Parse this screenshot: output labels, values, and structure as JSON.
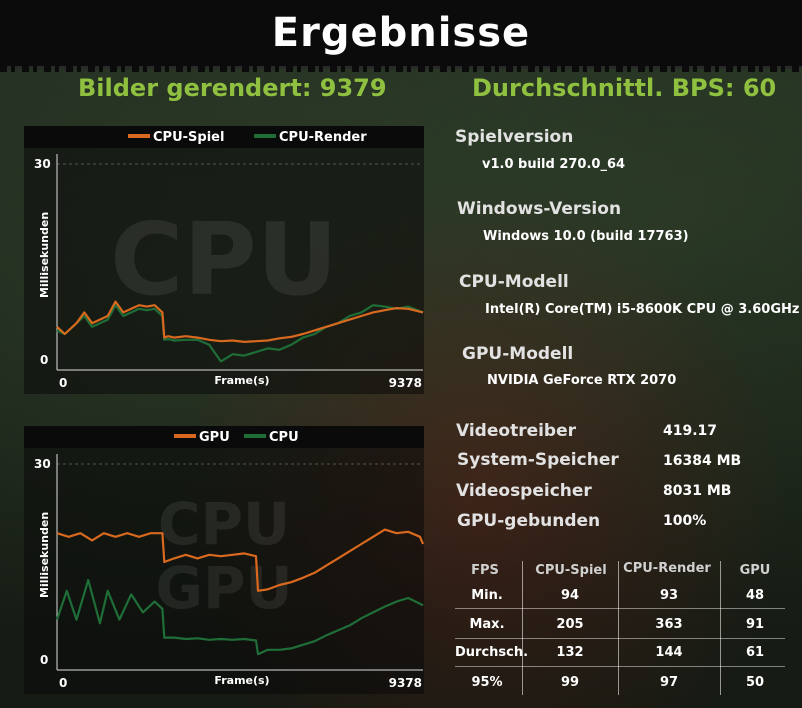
{
  "title": "Ergebnisse",
  "headline": {
    "frames_rendered": "Bilder gerendert: 9379",
    "average_fps": "Durchschnittl. BPS: 60"
  },
  "colors": {
    "accent_green": "#8fc03f",
    "series_orange": "#d8691f",
    "series_green": "#1f6e38"
  },
  "chart_data": [
    {
      "type": "line",
      "watermark": "CPU",
      "xlabel": "Frame(s)",
      "ylabel": "Millisekunden",
      "x_ticks": [
        "0",
        "9378"
      ],
      "y_ticks": [
        "30",
        "0"
      ],
      "xlim": [
        0,
        9378
      ],
      "ylim": [
        0,
        30
      ],
      "series": [
        {
          "name": "CPU-Spiel",
          "color": "#d8691f",
          "x": [
            0,
            200,
            500,
            700,
            900,
            1100,
            1300,
            1500,
            1700,
            1900,
            2100,
            2300,
            2500,
            2700,
            2750,
            2850,
            3000,
            3300,
            3600,
            3900,
            4200,
            4500,
            4800,
            5100,
            5400,
            5700,
            6000,
            6300,
            6600,
            6900,
            7200,
            7500,
            7800,
            8100,
            8400,
            8700,
            9000,
            9378
          ],
          "values": [
            6,
            5,
            6.5,
            8,
            6.5,
            7,
            7.5,
            9.5,
            8,
            8.5,
            9,
            8.8,
            9,
            8,
            4.5,
            4.7,
            4.5,
            4.7,
            4.5,
            4.2,
            4,
            4.1,
            3.9,
            4,
            4.1,
            4.4,
            4.6,
            5,
            5.5,
            6,
            6.5,
            7,
            7.5,
            8,
            8.3,
            8.6,
            8.5,
            8
          ]
        },
        {
          "name": "CPU-Render",
          "color": "#1f6e38",
          "x": [
            0,
            200,
            500,
            700,
            900,
            1100,
            1300,
            1500,
            1700,
            1900,
            2100,
            2300,
            2500,
            2700,
            2750,
            2850,
            3000,
            3300,
            3600,
            3900,
            4200,
            4500,
            4800,
            5100,
            5400,
            5700,
            6000,
            6300,
            6600,
            6900,
            7200,
            7500,
            7800,
            8100,
            8400,
            8700,
            9000,
            9378
          ],
          "values": [
            5.5,
            5,
            6.5,
            7.5,
            6,
            6.5,
            7,
            9,
            7.5,
            8,
            8.5,
            8.3,
            8.5,
            7.5,
            4.2,
            4.3,
            4.1,
            4.2,
            4.2,
            3.5,
            1.2,
            2.2,
            2,
            2.5,
            3,
            2.8,
            3.5,
            4.5,
            5,
            6,
            6.5,
            7.5,
            8,
            9,
            8.8,
            8.5,
            8.8,
            8
          ]
        }
      ]
    },
    {
      "type": "line",
      "watermark": "CPU GPU",
      "xlabel": "Frame(s)",
      "ylabel": "Millisekunden",
      "x_ticks": [
        "0",
        "9378"
      ],
      "y_ticks": [
        "30",
        "0"
      ],
      "xlim": [
        0,
        9378
      ],
      "ylim": [
        0,
        30
      ],
      "series": [
        {
          "name": "GPU",
          "color": "#d8691f",
          "x": [
            0,
            300,
            600,
            900,
            1200,
            1500,
            1800,
            2100,
            2400,
            2700,
            2750,
            3000,
            3300,
            3600,
            3900,
            4200,
            4500,
            4800,
            5100,
            5150,
            5400,
            5700,
            6000,
            6300,
            6600,
            6900,
            7200,
            7500,
            7800,
            8100,
            8400,
            8700,
            9000,
            9300,
            9378
          ],
          "values": [
            19,
            18.5,
            19,
            18,
            19,
            18.5,
            19,
            18.5,
            19,
            19,
            15,
            15.5,
            16,
            15.5,
            16,
            15.8,
            16,
            16.2,
            15.8,
            11,
            11.2,
            11.8,
            12.2,
            12.8,
            13.5,
            14.5,
            15.5,
            16.5,
            17.5,
            18.5,
            19.5,
            19,
            19.2,
            18.5,
            17.5
          ]
        },
        {
          "name": "CPU",
          "color": "#1f6e38",
          "x": [
            0,
            250,
            500,
            800,
            1100,
            1300,
            1600,
            1900,
            2200,
            2500,
            2700,
            2750,
            3000,
            3300,
            3600,
            3900,
            4200,
            4500,
            4800,
            5100,
            5150,
            5400,
            5700,
            6000,
            6300,
            6600,
            6900,
            7200,
            7500,
            7800,
            8100,
            8400,
            8700,
            9000,
            9378
          ],
          "values": [
            7,
            11,
            7,
            12.5,
            6.5,
            11,
            7,
            10.5,
            8,
            9.5,
            8.5,
            4.5,
            4.5,
            4.3,
            4.4,
            4.2,
            4.3,
            4.2,
            4.3,
            4.1,
            2.2,
            2.8,
            2.8,
            3,
            3.5,
            4,
            4.8,
            5.5,
            6.2,
            7.2,
            8,
            8.8,
            9.5,
            10,
            9
          ]
        }
      ]
    }
  ],
  "system_info": [
    {
      "label": "Spielversion",
      "value": "v1.0 build 270.0_64"
    },
    {
      "label": "Windows-Version",
      "value": "Windows 10.0 (build 17763)"
    },
    {
      "label": "CPU-Modell",
      "value": "Intel(R) Core(TM) i5-8600K CPU @ 3.60GHz"
    },
    {
      "label": "GPU-Modell",
      "value": "NVIDIA GeForce RTX 2070"
    }
  ],
  "specs": [
    {
      "label": "Videotreiber",
      "value": "419.17"
    },
    {
      "label": "System-Speicher",
      "value": "16384 MB"
    },
    {
      "label": "Videospeicher",
      "value": "8031 MB"
    },
    {
      "label": "GPU-gebunden",
      "value": "100%"
    }
  ],
  "fps_table": {
    "headers": [
      "FPS",
      "CPU-Spiel",
      "CPU-Render",
      "GPU"
    ],
    "rows": [
      [
        "Min.",
        "94",
        "93",
        "48"
      ],
      [
        "Max.",
        "205",
        "363",
        "91"
      ],
      [
        "Durchsch.",
        "132",
        "144",
        "61"
      ],
      [
        "95%",
        "99",
        "97",
        "50"
      ]
    ]
  }
}
